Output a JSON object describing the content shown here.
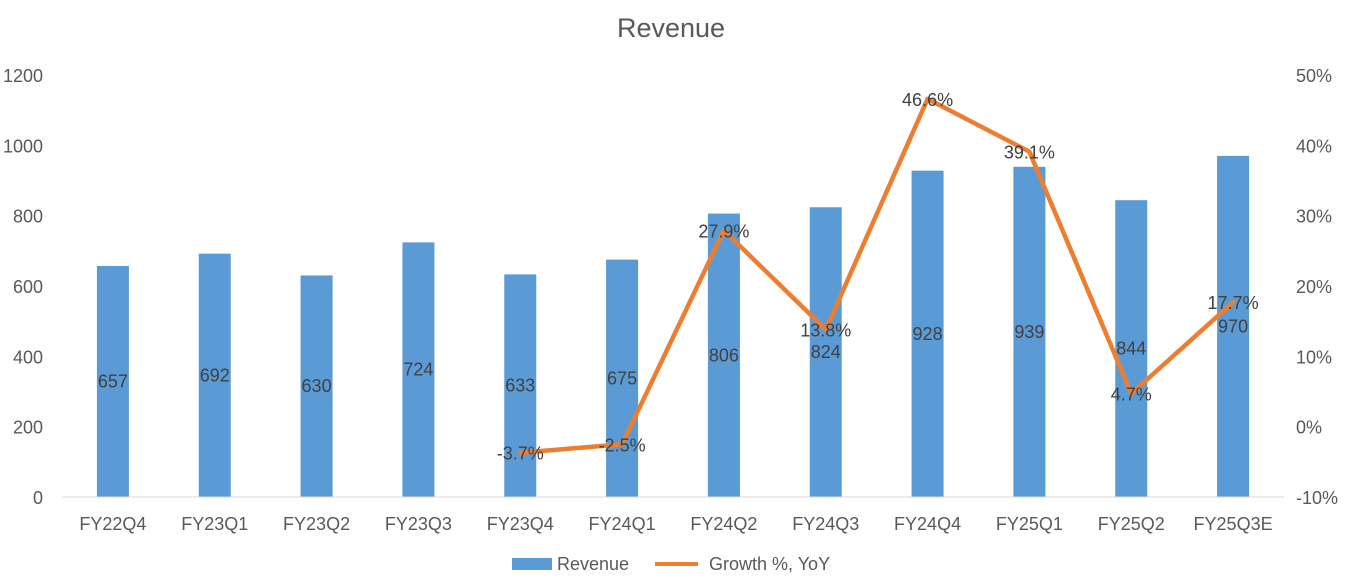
{
  "chart_data": {
    "type": "bar",
    "title": "Revenue",
    "categories": [
      "FY22Q4",
      "FY23Q1",
      "FY23Q2",
      "FY23Q3",
      "FY23Q4",
      "FY24Q1",
      "FY24Q2",
      "FY24Q3",
      "FY24Q4",
      "FY25Q1",
      "FY25Q2",
      "FY25Q3E"
    ],
    "series": [
      {
        "name": "Revenue",
        "type": "bar",
        "axis": "left",
        "color": "#5B9BD5",
        "values": [
          657,
          692,
          630,
          724,
          633,
          675,
          806,
          824,
          928,
          939,
          844,
          970
        ],
        "labels": [
          "657",
          "692",
          "630",
          "724",
          "633",
          "675",
          "806",
          "824",
          "928",
          "939",
          "844",
          "970"
        ]
      },
      {
        "name": "Growth %, YoY",
        "type": "line",
        "axis": "right",
        "color": "#ED7D31",
        "values": [
          null,
          null,
          null,
          null,
          -3.7,
          -2.5,
          27.9,
          13.8,
          46.6,
          39.1,
          4.7,
          17.7
        ],
        "labels": [
          "",
          "",
          "",
          "",
          "-3.7%",
          "-2.5%",
          "27.9%",
          "13.8%",
          "46.6%",
          "39.1%",
          "4.7%",
          "17.7%"
        ]
      }
    ],
    "y_left": {
      "min": 0,
      "max": 1200,
      "ticks": [
        "0",
        "200",
        "400",
        "600",
        "800",
        "1000",
        "1200"
      ],
      "tick_values": [
        0,
        200,
        400,
        600,
        800,
        1000,
        1200
      ]
    },
    "y_right": {
      "min": -10,
      "max": 50,
      "ticks": [
        "-10%",
        "0%",
        "10%",
        "20%",
        "30%",
        "40%",
        "50%"
      ],
      "tick_values": [
        -10,
        0,
        10,
        20,
        30,
        40,
        50
      ]
    },
    "grid": false,
    "legend": {
      "position": "bottom",
      "entries": [
        "Revenue",
        "Growth %, YoY"
      ]
    }
  }
}
